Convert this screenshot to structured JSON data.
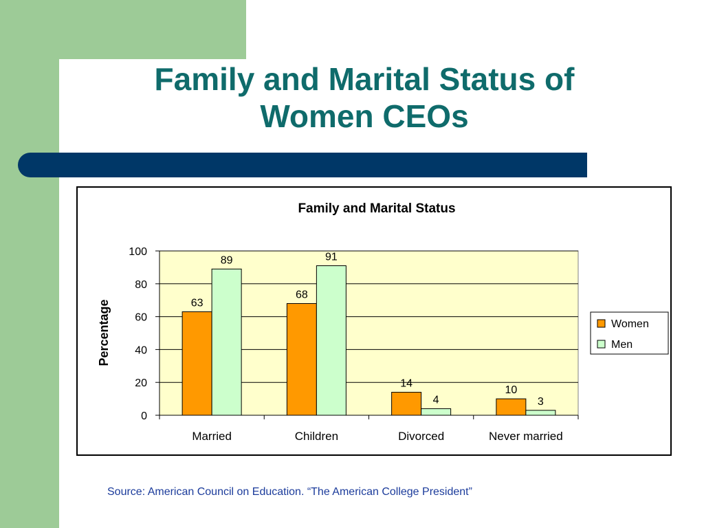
{
  "slide": {
    "title_line1": "Family and Marital Status of",
    "title_line2": "Women CEOs",
    "source": "Source: American Council on Education. “The American College President”"
  },
  "colors": {
    "background_band": "#9dcb97",
    "title_text": "#0f6b6b",
    "accent_bar": "#003767",
    "plot_area": "#ffffcc",
    "women_bar": "#ff9900",
    "men_bar": "#ccffcc",
    "source_text": "#1b3b9b"
  },
  "chart_data": {
    "type": "bar",
    "title": "Family and Marital Status",
    "ylabel": "Percentage",
    "xlabel": "",
    "categories": [
      "Married",
      "Children",
      "Divorced",
      "Never married"
    ],
    "series": [
      {
        "name": "Women",
        "values": [
          63,
          68,
          14,
          10
        ],
        "color": "#ff9900"
      },
      {
        "name": "Men",
        "values": [
          89,
          91,
          4,
          3
        ],
        "color": "#ccffcc"
      }
    ],
    "ylim": [
      0,
      100
    ],
    "yticks": [
      0,
      20,
      40,
      60,
      80,
      100
    ],
    "grid": true,
    "data_labels": true,
    "legend_position": "right"
  }
}
